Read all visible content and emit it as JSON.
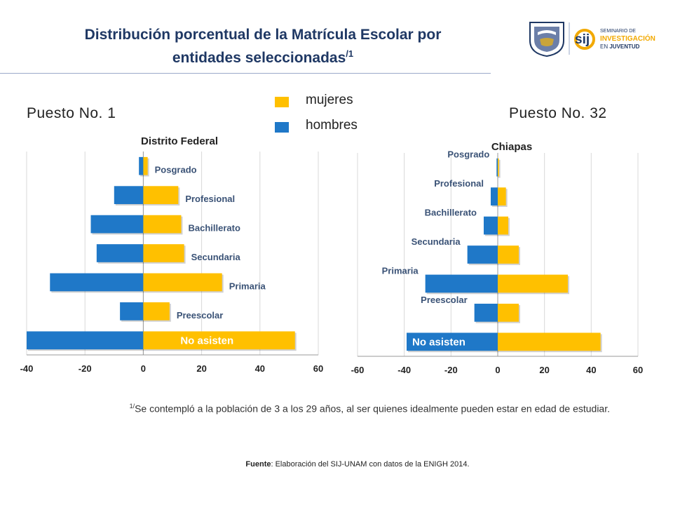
{
  "header": {
    "title_line1": "Distribución porcentual de la Matrícula Escolar por",
    "title_line2": "entidades seleccionadas",
    "title_note": "/1"
  },
  "logo": {
    "line1": "SEMINARIO DE",
    "line2": "INVESTIGACIÓN",
    "line3_prefix": "EN ",
    "line3_word": "JUVENTUD",
    "mark": "sij"
  },
  "ranks": {
    "left": "Puesto No. 1",
    "right": "Puesto No. 32"
  },
  "legend": [
    {
      "label": "mujeres",
      "color": "#ffc000"
    },
    {
      "label": "hombres",
      "color": "#1f78c8"
    }
  ],
  "chart_data": [
    {
      "type": "bar",
      "orientation": "horizontal-pyramid",
      "title": "Distrito Federal",
      "categories": [
        "Posgrado",
        "Profesional",
        "Bachillerato",
        "Secundaria",
        "Primaria",
        "Preescolar",
        "No asisten"
      ],
      "series": [
        {
          "name": "mujeres",
          "values": [
            1.5,
            12,
            13,
            14,
            27,
            9,
            52
          ]
        },
        {
          "name": "hombres",
          "values": [
            -1.5,
            -10,
            -18,
            -16,
            -32,
            -8,
            -40
          ]
        }
      ],
      "xlim": [
        -40,
        60
      ],
      "ticks": [
        "-40",
        "-20",
        "0",
        "20",
        "40",
        "60"
      ],
      "label_mode": "right-of-mujeres",
      "bold_label": "No asisten"
    },
    {
      "type": "bar",
      "orientation": "horizontal-pyramid",
      "title": "Chiapas",
      "categories": [
        "Posgrado",
        "Profesional",
        "Bachillerato",
        "Secundaria",
        "Primaria",
        "Preescolar",
        "No asisten"
      ],
      "series": [
        {
          "name": "mujeres",
          "values": [
            0.5,
            3.5,
            4.5,
            9,
            30,
            9,
            44
          ]
        },
        {
          "name": "hombres",
          "values": [
            -0.5,
            -3,
            -6,
            -13,
            -31,
            -10,
            -39
          ]
        }
      ],
      "xlim": [
        -60,
        60
      ],
      "ticks": [
        "-60",
        "-40",
        "-20",
        "0",
        "20",
        "40",
        "60"
      ],
      "label_mode": "left-of-hombres",
      "bold_label": "No asisten"
    }
  ],
  "footnote": {
    "marker": "1/",
    "text": "Se contempló a la población de 3 a los 29 años, al ser quienes idealmente pueden estar en edad de estudiar."
  },
  "source": {
    "label": "Fuente",
    "text": ": Elaboración del SIJ-UNAM con datos de la ENIGH 2014."
  }
}
